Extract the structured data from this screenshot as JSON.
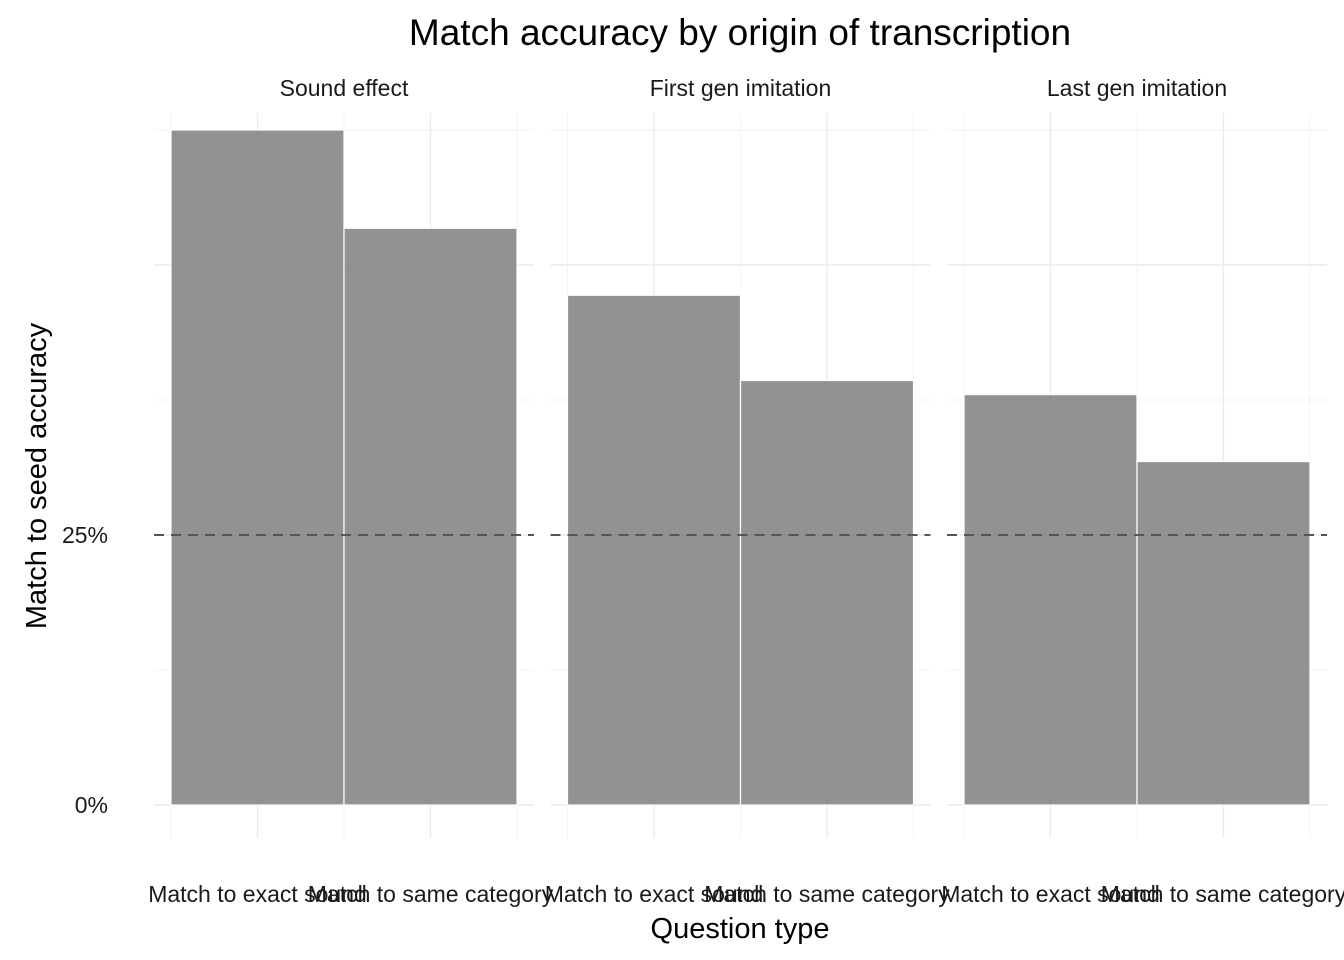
{
  "chart_data": {
    "type": "bar",
    "title": "Match accuracy by origin of transcription",
    "xlabel": "Question type",
    "ylabel": "Match to seed accuracy",
    "ylim": [
      0,
      0.725
    ],
    "y_ticks": [
      0,
      0.25
    ],
    "y_tick_labels": [
      "0%",
      "25%"
    ],
    "reference_line": {
      "y": 0.25,
      "style": "dashed",
      "color": "#555555"
    },
    "categories": [
      "Match to exact sound",
      "Match to same category"
    ],
    "facets": [
      {
        "name": "Sound effect",
        "values": [
          0.625,
          0.534
        ]
      },
      {
        "name": "First gen imitation",
        "values": [
          0.472,
          0.393
        ]
      },
      {
        "name": "Last gen imitation",
        "values": [
          0.38,
          0.318
        ]
      }
    ],
    "bar_color": "#7f7f7f",
    "grid": true,
    "legend": "none"
  }
}
